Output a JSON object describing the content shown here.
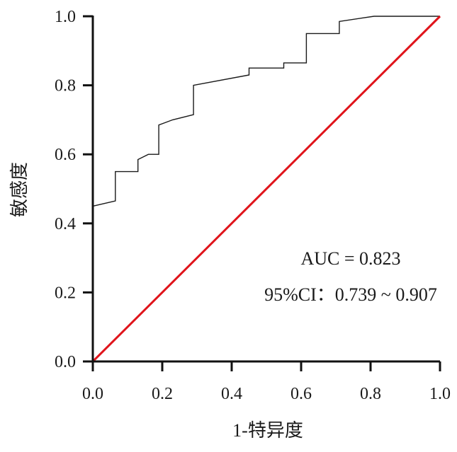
{
  "chart_data": {
    "type": "line",
    "title": "",
    "xlabel": "1-特异度",
    "ylabel": "敏感度",
    "xlim": [
      0,
      1
    ],
    "ylim": [
      0,
      1
    ],
    "xticks": [
      "0.0",
      "0.2",
      "0.4",
      "0.6",
      "0.8",
      "1.0"
    ],
    "yticks": [
      "0.0",
      "0.2",
      "0.4",
      "0.6",
      "0.8",
      "1.0"
    ],
    "grid": false,
    "series": [
      {
        "name": "",
        "color": "#1a1a1a",
        "style": "step",
        "x": [
          0.0,
          0.0,
          0.065,
          0.065,
          0.13,
          0.13,
          0.16,
          0.19,
          0.19,
          0.23,
          0.29,
          0.29,
          0.45,
          0.45,
          0.55,
          0.55,
          0.615,
          0.615,
          0.71,
          0.71,
          0.81,
          1.0
        ],
        "y": [
          0.0,
          0.45,
          0.465,
          0.55,
          0.55,
          0.585,
          0.6,
          0.6,
          0.685,
          0.7,
          0.715,
          0.8,
          0.83,
          0.85,
          0.85,
          0.865,
          0.865,
          0.95,
          0.95,
          0.985,
          1.0,
          1.0
        ]
      },
      {
        "name": "",
        "color": "#e0141b",
        "style": "reference",
        "x": [
          0,
          1
        ],
        "y": [
          0,
          1
        ]
      }
    ],
    "annotations": {
      "auc": "AUC = 0.823",
      "ci": "95%CI：0.739 ~ 0.907"
    }
  }
}
